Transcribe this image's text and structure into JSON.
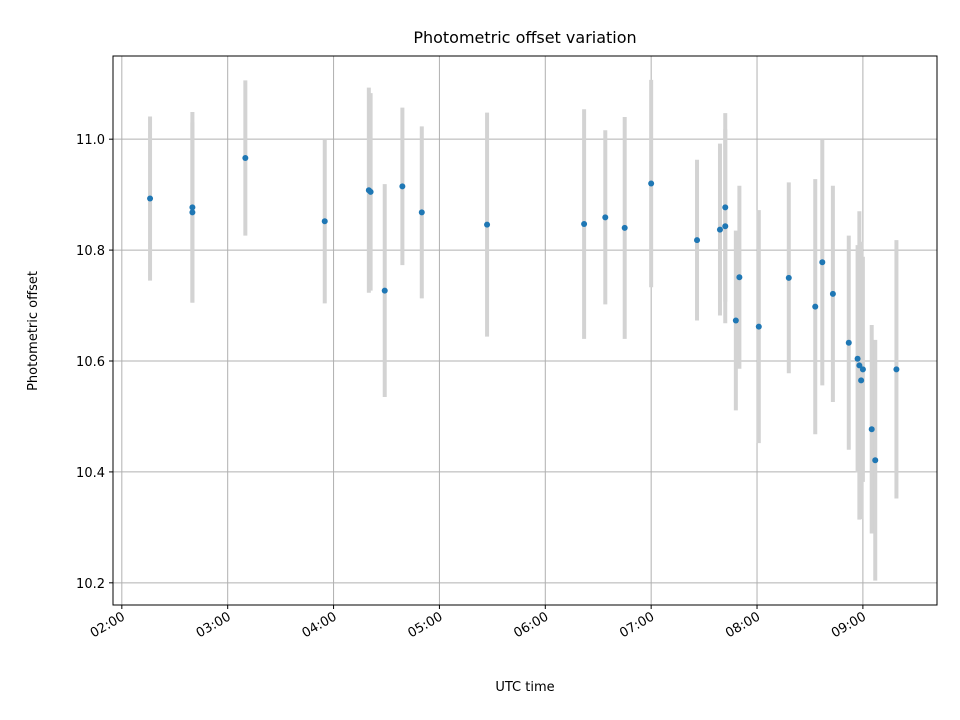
{
  "chart_data": {
    "type": "scatter",
    "title": "Photometric offset variation",
    "xlabel": "UTC time",
    "ylabel": "Photometric offset",
    "x_ticks": [
      "02:00",
      "03:00",
      "04:00",
      "05:00",
      "06:00",
      "07:00",
      "08:00",
      "09:00"
    ],
    "y_ticks": [
      "10.2",
      "10.4",
      "10.6",
      "10.8",
      "11.0"
    ],
    "xlim": [
      "01:55",
      "09:42"
    ],
    "ylim": [
      10.16,
      11.15
    ],
    "grid": true,
    "colors": {
      "point": "#1f77b4",
      "errorbar": "#d3d3d3",
      "grid": "#b0b0b0"
    },
    "points": [
      {
        "x": "02:16",
        "y": 10.893,
        "err": 0.148
      },
      {
        "x": "02:40",
        "y": 10.877,
        "err": 0.172
      },
      {
        "x": "02:40",
        "y": 10.868,
        "err": 0.162
      },
      {
        "x": "03:10",
        "y": 10.966,
        "err": 0.14
      },
      {
        "x": "03:55",
        "y": 10.852,
        "err": 0.148
      },
      {
        "x": "04:20",
        "y": 10.908,
        "err": 0.185
      },
      {
        "x": "04:21",
        "y": 10.905,
        "err": 0.178
      },
      {
        "x": "04:29",
        "y": 10.727,
        "err": 0.192
      },
      {
        "x": "04:39",
        "y": 10.915,
        "err": 0.142
      },
      {
        "x": "04:50",
        "y": 10.868,
        "err": 0.155
      },
      {
        "x": "05:27",
        "y": 10.846,
        "err": 0.202
      },
      {
        "x": "06:22",
        "y": 10.847,
        "err": 0.207
      },
      {
        "x": "06:34",
        "y": 10.859,
        "err": 0.157
      },
      {
        "x": "06:45",
        "y": 10.84,
        "err": 0.2
      },
      {
        "x": "07:00",
        "y": 10.92,
        "err": 0.187
      },
      {
        "x": "07:26",
        "y": 10.818,
        "err": 0.145
      },
      {
        "x": "07:39",
        "y": 10.837,
        "err": 0.155
      },
      {
        "x": "07:42",
        "y": 10.877,
        "err": 0.17
      },
      {
        "x": "07:42",
        "y": 10.843,
        "err": 0.175
      },
      {
        "x": "07:48",
        "y": 10.673,
        "err": 0.162
      },
      {
        "x": "07:50",
        "y": 10.751,
        "err": 0.165
      },
      {
        "x": "08:01",
        "y": 10.662,
        "err": 0.21
      },
      {
        "x": "08:18",
        "y": 10.75,
        "err": 0.172
      },
      {
        "x": "08:33",
        "y": 10.698,
        "err": 0.23
      },
      {
        "x": "08:37",
        "y": 10.778,
        "err": 0.222
      },
      {
        "x": "08:43",
        "y": 10.721,
        "err": 0.195
      },
      {
        "x": "08:52",
        "y": 10.633,
        "err": 0.193
      },
      {
        "x": "08:57",
        "y": 10.604,
        "err": 0.205
      },
      {
        "x": "08:58",
        "y": 10.592,
        "err": 0.278
      },
      {
        "x": "08:59",
        "y": 10.565,
        "err": 0.25
      },
      {
        "x": "09:00",
        "y": 10.585,
        "err": 0.203
      },
      {
        "x": "09:05",
        "y": 10.477,
        "err": 0.188
      },
      {
        "x": "09:07",
        "y": 10.421,
        "err": 0.217
      },
      {
        "x": "09:19",
        "y": 10.585,
        "err": 0.233
      }
    ]
  }
}
